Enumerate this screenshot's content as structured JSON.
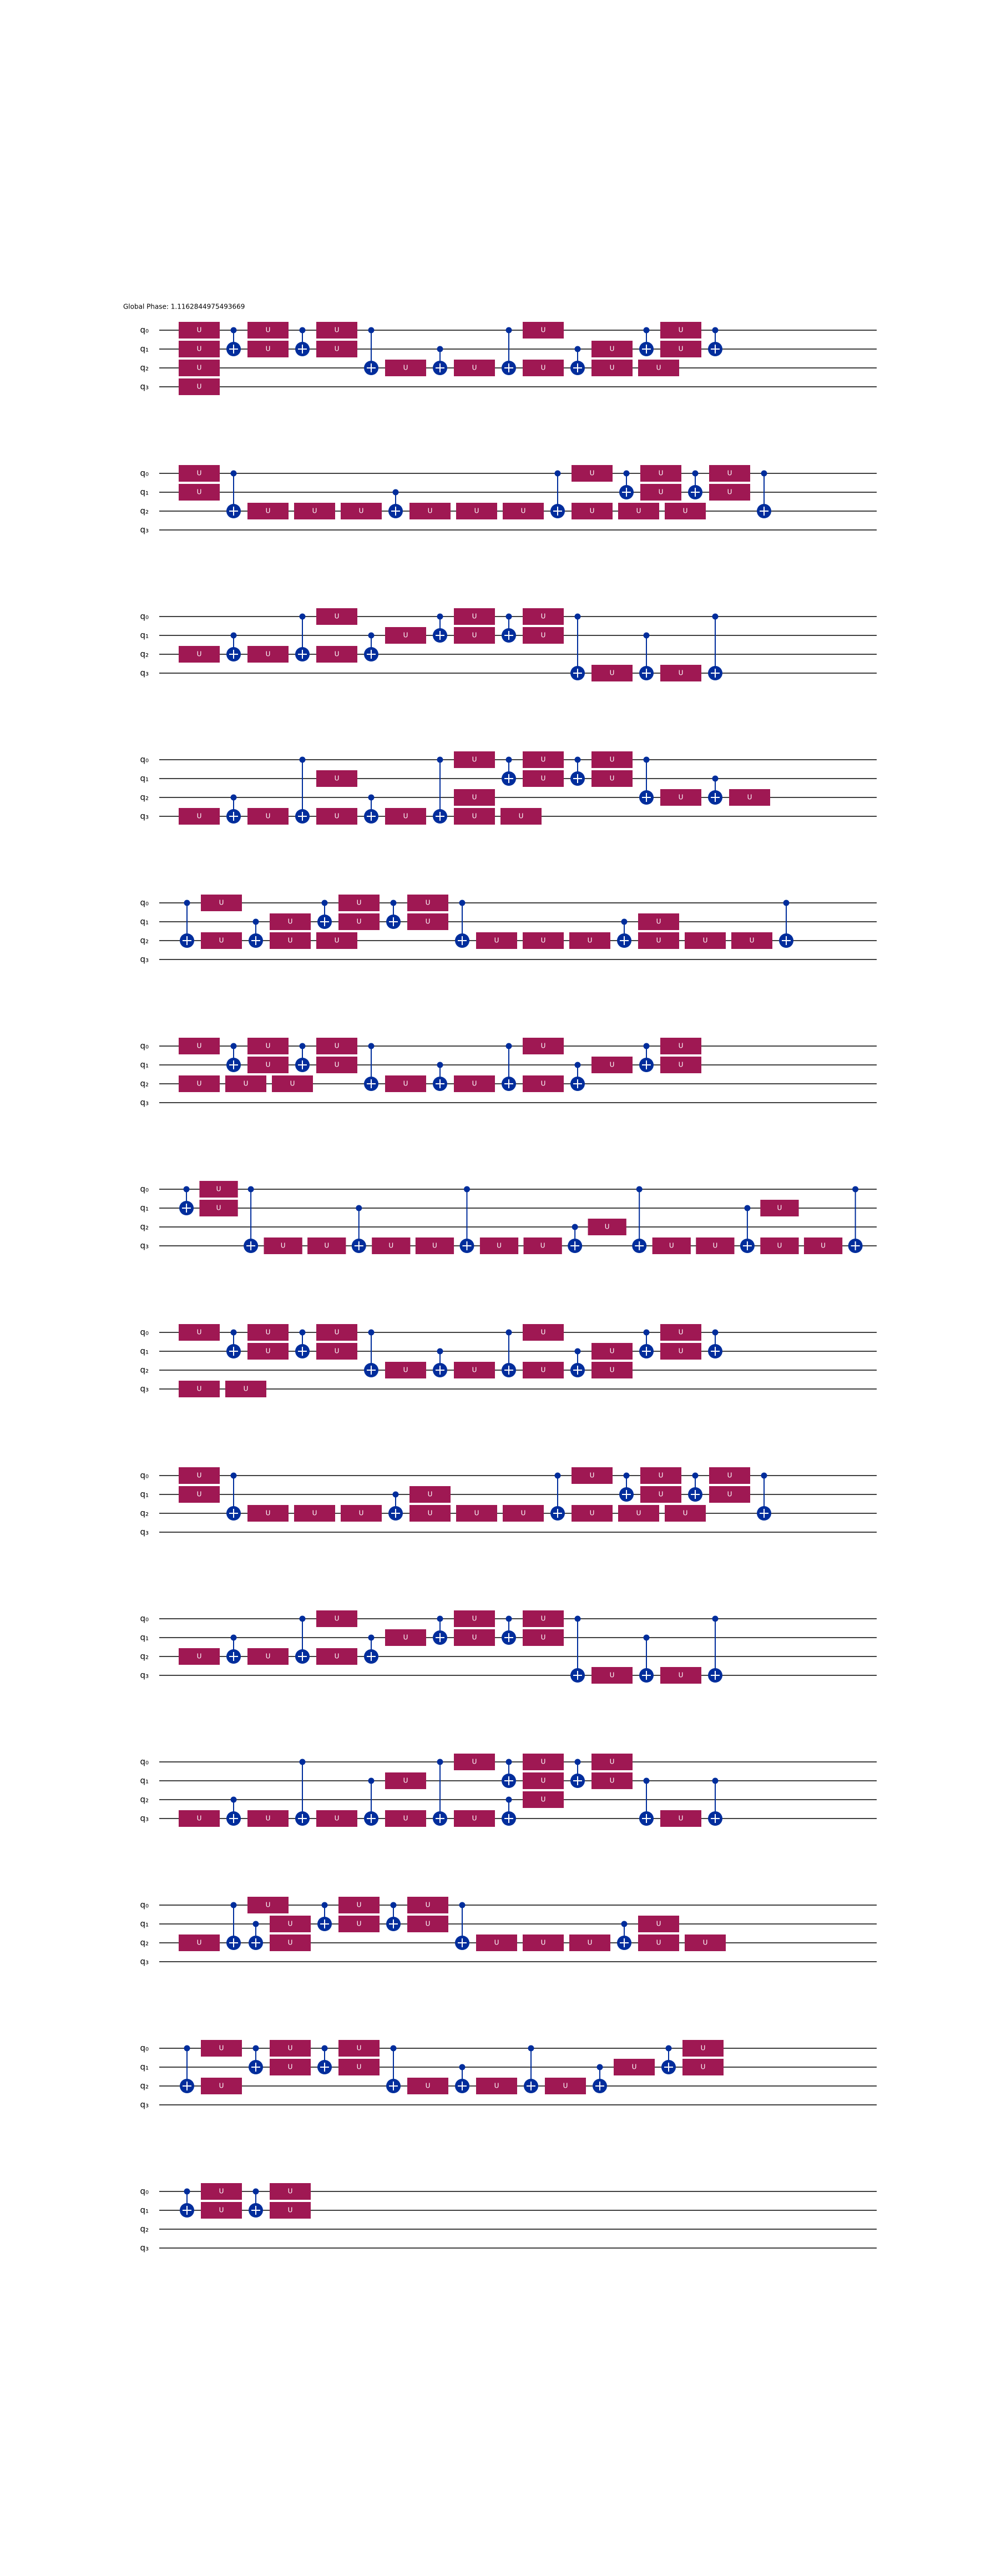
{
  "global_phase": "Global Phase: 1.1162844975493669",
  "qubits": [
    "q₀",
    "q₁",
    "q₂",
    "q₃"
  ],
  "gate_label": "U",
  "rows": [
    "U0 U1 U2 U3 C01 U0 U1 C01 U0 U1 C02 U2 C12 U2 C02 U0 U2 C12 U1 U2 U2 C01 U0 U1 C01",
    "U0 U1 C02 U2 U2 U2 C12 U2 U2 U2 C02 U0 U2 C01 U1 U2 U0 U2 C01 U0 U1 C02",
    "U2 C12 U2 C02 U0 U2 C12 U1 C01 U0 U1 C01 U0 U1 C03 U3 C13 U3 C03",
    "U3 C23 U3 C03 U3 C23 U1 U3 C03 U0 U3 C01 U0 U1 U2 U3 C01 U0 U1 C02 U2 C12 U2",
    "C02 U0 U2 C12 U1 U2 U2 C01 U0 U1 C01 U0 U1 C02 U2 U2 U2 C12 U1 U2 U2 U2 C02",
    "U0 U2 C01 U2 U0 U1 U2 C01 U0 U1 C02 U2 C12 U2 C02 U0 U2 C12 U1 C01 U0 U1",
    "C01 U0 U1 C03 U3 U3 C13 U3 U3 C03 U3 U3 C23 U2 C03 U3 U3 C13 U1 U3 U3 C03",
    "U0 U3 U3 C01 U0 U1 C01 U0 U1 C02 U2 C12 U2 C02 U0 U2 C12 U1 U2 C01 U0 U1 C01",
    "U0 U1 C02 U2 U2 U2 C12 U1 U2 U2 U2 C02 U0 U2 C01 U2 U2 U0 U1 C01 U0 U1 C02",
    "U2 C12 U2 C02 U0 U2 C12 U1 C01 U0 U1 C01 U0 U1 C03 U3 C13 U3 C03",
    "U3 C23 U3 C03 U3 C13 U1 U3 C03 U0 U3 C23 C01 U0 U1 U2 C01 U0 U1 C13 U3 C13",
    "U2 C02 U0 C12 U1 U2 C01 U0 U1 C01 U0 U1 C02 U2 U2 U2 C12 U1 U2 U2",
    "C02 U0 U2 C01 U0 U1 C01 U0 U1 C02 U2 C12 U2 C02 U2 C12 U1 C01 U0 U1",
    "C01 U0 U1 C01 U0 U1"
  ]
}
